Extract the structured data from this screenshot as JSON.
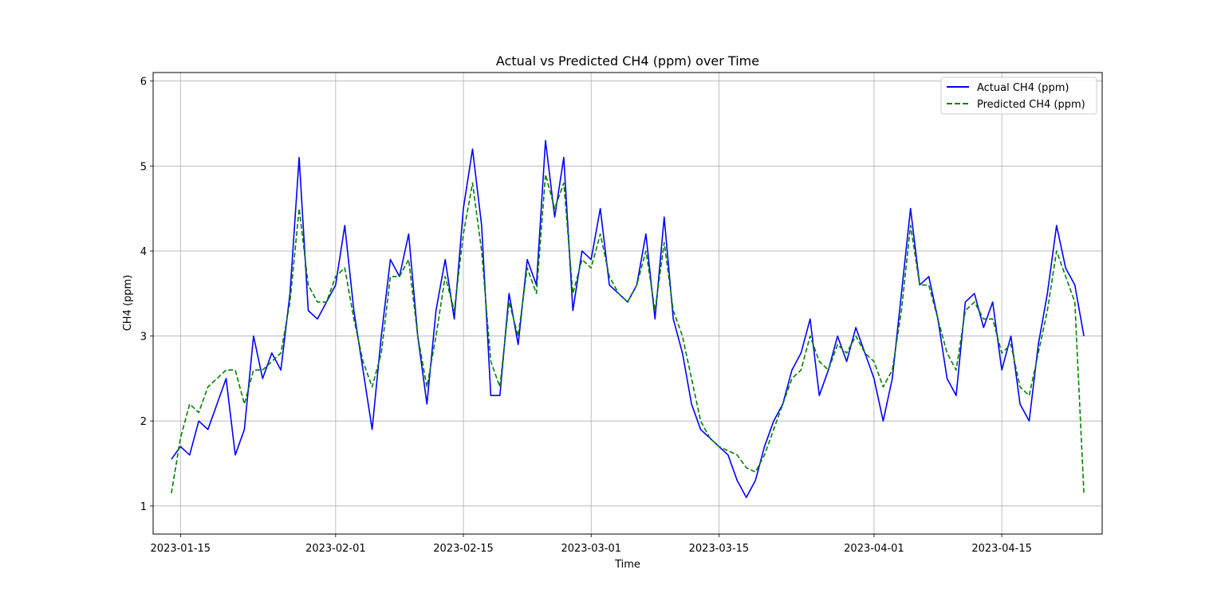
{
  "chart_data": {
    "type": "line",
    "title": "Actual vs Predicted CH4 (ppm) over Time",
    "xlabel": "Time",
    "ylabel": "CH4 (ppm)",
    "x_range": [
      "2023-01-12",
      "2023-04-26"
    ],
    "ylim": [
      0.67,
      6.1
    ],
    "grid": true,
    "legend_position": "top-right",
    "x_ticks": [
      "2023-01-15",
      "2023-02-01",
      "2023-02-15",
      "2023-03-01",
      "2023-03-15",
      "2023-04-01",
      "2023-04-15"
    ],
    "y_ticks": [
      1,
      2,
      3,
      4,
      5,
      6
    ],
    "x": [
      "2023-01-14",
      "2023-01-15",
      "2023-01-16",
      "2023-01-17",
      "2023-01-18",
      "2023-01-19",
      "2023-01-20",
      "2023-01-21",
      "2023-01-22",
      "2023-01-23",
      "2023-01-24",
      "2023-01-25",
      "2023-01-26",
      "2023-01-27",
      "2023-01-28",
      "2023-01-29",
      "2023-01-30",
      "2023-01-31",
      "2023-02-01",
      "2023-02-02",
      "2023-02-03",
      "2023-02-04",
      "2023-02-05",
      "2023-02-06",
      "2023-02-07",
      "2023-02-08",
      "2023-02-09",
      "2023-02-10",
      "2023-02-11",
      "2023-02-12",
      "2023-02-13",
      "2023-02-14",
      "2023-02-15",
      "2023-02-16",
      "2023-02-17",
      "2023-02-18",
      "2023-02-19",
      "2023-02-20",
      "2023-02-21",
      "2023-02-22",
      "2023-02-23",
      "2023-02-24",
      "2023-02-25",
      "2023-02-26",
      "2023-02-27",
      "2023-02-28",
      "2023-03-01",
      "2023-03-02",
      "2023-03-03",
      "2023-03-04",
      "2023-03-05",
      "2023-03-06",
      "2023-03-07",
      "2023-03-08",
      "2023-03-09",
      "2023-03-10",
      "2023-03-11",
      "2023-03-12",
      "2023-03-13",
      "2023-03-14",
      "2023-03-15",
      "2023-03-16",
      "2023-03-17",
      "2023-03-18",
      "2023-03-19",
      "2023-03-20",
      "2023-03-21",
      "2023-03-22",
      "2023-03-23",
      "2023-03-24",
      "2023-03-25",
      "2023-03-26",
      "2023-03-27",
      "2023-03-28",
      "2023-03-29",
      "2023-03-30",
      "2023-03-31",
      "2023-04-01",
      "2023-04-02",
      "2023-04-03",
      "2023-04-04",
      "2023-04-05",
      "2023-04-06",
      "2023-04-07",
      "2023-04-08",
      "2023-04-09",
      "2023-04-10",
      "2023-04-11",
      "2023-04-12",
      "2023-04-13",
      "2023-04-14",
      "2023-04-15",
      "2023-04-16",
      "2023-04-17",
      "2023-04-18",
      "2023-04-19",
      "2023-04-20",
      "2023-04-21",
      "2023-04-22",
      "2023-04-23",
      "2023-04-24"
    ],
    "series": [
      {
        "name": "Actual CH4 (ppm)",
        "color": "#0000ff",
        "style": "solid",
        "values": [
          1.55,
          1.7,
          1.6,
          2.0,
          1.9,
          2.2,
          2.5,
          1.6,
          1.9,
          3.0,
          2.5,
          2.8,
          2.6,
          3.5,
          5.1,
          3.3,
          3.2,
          3.4,
          3.6,
          4.3,
          3.3,
          2.6,
          1.9,
          3.0,
          3.9,
          3.7,
          4.2,
          3.0,
          2.2,
          3.3,
          3.9,
          3.2,
          4.5,
          5.2,
          4.3,
          2.3,
          2.3,
          3.5,
          2.9,
          3.9,
          3.6,
          5.3,
          4.4,
          5.1,
          3.3,
          4.0,
          3.9,
          4.5,
          3.6,
          3.5,
          3.4,
          3.6,
          4.2,
          3.2,
          4.4,
          3.2,
          2.8,
          2.2,
          1.9,
          1.8,
          1.7,
          1.6,
          1.3,
          1.1,
          1.3,
          1.7,
          2.0,
          2.2,
          2.6,
          2.8,
          3.2,
          2.3,
          2.6,
          3.0,
          2.7,
          3.1,
          2.8,
          2.5,
          2.0,
          2.5,
          3.5,
          4.5,
          3.6,
          3.7,
          3.2,
          2.5,
          2.3,
          3.4,
          3.5,
          3.1,
          3.4,
          2.6,
          3.0,
          2.2,
          2.0,
          2.9,
          3.5,
          4.3,
          3.8,
          3.6,
          3.0
        ]
      },
      {
        "name": "Predicted CH4 (ppm)",
        "color": "#008000",
        "style": "dashed",
        "values": [
          1.15,
          1.8,
          2.2,
          2.1,
          2.4,
          2.5,
          2.6,
          2.6,
          2.2,
          2.6,
          2.6,
          2.7,
          2.8,
          3.4,
          4.5,
          3.6,
          3.4,
          3.4,
          3.7,
          3.8,
          3.2,
          2.7,
          2.4,
          2.8,
          3.7,
          3.7,
          3.9,
          3.0,
          2.4,
          3.0,
          3.7,
          3.3,
          4.2,
          4.8,
          4.0,
          2.7,
          2.4,
          3.4,
          3.0,
          3.8,
          3.5,
          4.9,
          4.5,
          4.8,
          3.5,
          3.9,
          3.8,
          4.2,
          3.7,
          3.5,
          3.4,
          3.6,
          4.0,
          3.3,
          4.1,
          3.3,
          3.0,
          2.5,
          2.0,
          1.8,
          1.7,
          1.65,
          1.6,
          1.45,
          1.4,
          1.6,
          1.9,
          2.2,
          2.5,
          2.6,
          3.0,
          2.7,
          2.6,
          2.9,
          2.8,
          3.0,
          2.8,
          2.7,
          2.4,
          2.6,
          3.3,
          4.3,
          3.6,
          3.6,
          3.2,
          2.8,
          2.6,
          3.3,
          3.4,
          3.2,
          3.2,
          2.8,
          2.9,
          2.4,
          2.3,
          2.8,
          3.3,
          4.0,
          3.7,
          3.4,
          1.15
        ]
      }
    ]
  }
}
